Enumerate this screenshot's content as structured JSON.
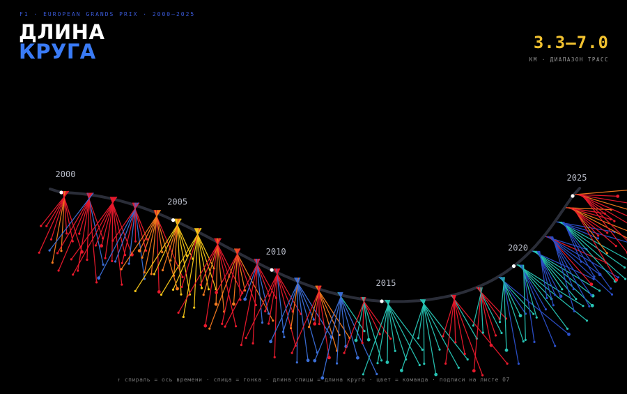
{
  "header": {
    "kicker": "F1 · EUROPEAN GRANDS PRIX · 2000–2025",
    "title_line1": "ДЛИНА",
    "title_line2": "КРУГА"
  },
  "stat": {
    "value": "3.3–7.0",
    "label": "КМ · ДИАПАЗОН ТРАСС"
  },
  "footer": "↑ спираль = ось времени · спица = гонка · длина спицы = длина круга · цвет = команда · подписи на листе 07",
  "colors": {
    "background": "#000000",
    "spiral": "#2a2d38",
    "year_label": "#b8bcc8",
    "accent_blue": "#3a7bf5",
    "accent_yellow": "#f2c230",
    "ferrari": "#e8192c",
    "mclaren": "#f47a1f",
    "renault": "#f5c518",
    "williams": "#3b6fd8",
    "mercedes": "#27c4b4",
    "redbull": "#2b4fc9"
  },
  "chart_data": {
    "type": "radial-spokes-on-spiral",
    "x_axis": "year",
    "year_range": [
      2000,
      2025
    ],
    "year_labels": [
      "2000",
      "2005",
      "2010",
      "2015",
      "2020",
      "2025"
    ],
    "lap_length_km_range": [
      3.3,
      7.0
    ],
    "seasons": [
      {
        "year": 2000,
        "team": "ferrari",
        "secondary": "mclaren",
        "races": 9
      },
      {
        "year": 2001,
        "team": "ferrari",
        "secondary": "williams",
        "races": 9
      },
      {
        "year": 2002,
        "team": "ferrari",
        "secondary": "ferrari",
        "races": 9
      },
      {
        "year": 2003,
        "team": "ferrari",
        "secondary": "williams",
        "races": 9
      },
      {
        "year": 2004,
        "team": "ferrari",
        "secondary": "mclaren",
        "races": 9
      },
      {
        "year": 2005,
        "team": "renault",
        "secondary": "mclaren",
        "races": 9
      },
      {
        "year": 2006,
        "team": "renault",
        "secondary": "ferrari",
        "races": 9
      },
      {
        "year": 2007,
        "team": "ferrari",
        "secondary": "mclaren",
        "races": 9
      },
      {
        "year": 2008,
        "team": "ferrari",
        "secondary": "mclaren",
        "races": 8
      },
      {
        "year": 2009,
        "team": "ferrari",
        "secondary": "williams",
        "races": 8
      },
      {
        "year": 2010,
        "team": "ferrari",
        "secondary": "williams",
        "races": 8
      },
      {
        "year": 2011,
        "team": "williams",
        "secondary": "mclaren",
        "races": 8
      },
      {
        "year": 2012,
        "team": "ferrari",
        "secondary": "mclaren",
        "races": 8
      },
      {
        "year": 2013,
        "team": "williams",
        "secondary": "mercedes",
        "races": 7
      },
      {
        "year": 2014,
        "team": "mercedes",
        "secondary": "ferrari",
        "races": 7
      },
      {
        "year": 2015,
        "team": "mercedes",
        "secondary": "mercedes",
        "races": 7
      },
      {
        "year": 2016,
        "team": "mercedes",
        "secondary": "mercedes",
        "races": 7
      },
      {
        "year": 2017,
        "team": "ferrari",
        "secondary": "mercedes",
        "races": 7
      },
      {
        "year": 2018,
        "team": "ferrari",
        "secondary": "mercedes",
        "races": 8
      },
      {
        "year": 2019,
        "team": "mercedes",
        "secondary": "redbull",
        "races": 8
      },
      {
        "year": 2020,
        "team": "mercedes",
        "secondary": "redbull",
        "races": 9
      },
      {
        "year": 2021,
        "team": "mercedes",
        "secondary": "redbull",
        "races": 10
      },
      {
        "year": 2022,
        "team": "redbull",
        "secondary": "ferrari",
        "races": 10
      },
      {
        "year": 2023,
        "team": "redbull",
        "secondary": "mercedes",
        "races": 10
      },
      {
        "year": 2024,
        "team": "mclaren",
        "secondary": "ferrari",
        "races": 10
      },
      {
        "year": 2025,
        "team": "ferrari",
        "secondary": "mclaren",
        "races": 9
      }
    ]
  }
}
